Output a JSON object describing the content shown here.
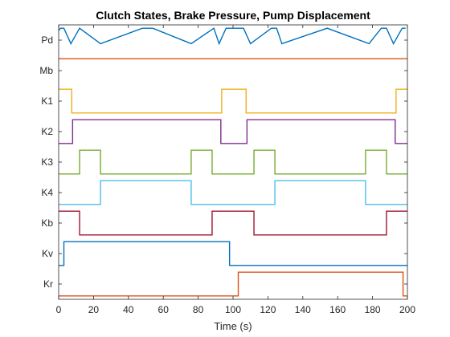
{
  "chart_data": {
    "type": "line",
    "title": "Clutch States, Brake Pressure, Pump Displacement",
    "xlabel": "Time (s)",
    "ylabel": "",
    "xlim": [
      0,
      200
    ],
    "x_ticks": [
      0,
      20,
      40,
      60,
      80,
      100,
      120,
      140,
      160,
      180,
      200
    ],
    "grid": false,
    "legend": "none",
    "series": [
      {
        "name": "Pd",
        "color": "#0072BD",
        "points": [
          [
            0,
            0.9
          ],
          [
            1,
            1.0
          ],
          [
            3,
            1.0
          ],
          [
            7,
            0.35
          ],
          [
            12,
            1.0
          ],
          [
            24,
            0.35
          ],
          [
            48,
            1.0
          ],
          [
            54,
            1.0
          ],
          [
            76,
            0.35
          ],
          [
            89,
            1.0
          ],
          [
            92,
            0.35
          ],
          [
            96,
            1.0
          ],
          [
            106,
            1.0
          ],
          [
            110,
            0.35
          ],
          [
            122,
            1.0
          ],
          [
            125,
            1.0
          ],
          [
            128,
            0.35
          ],
          [
            154,
            1.0
          ],
          [
            178,
            0.35
          ],
          [
            185,
            1.0
          ],
          [
            188,
            1.0
          ],
          [
            192,
            0.35
          ],
          [
            197,
            1.0
          ],
          [
            199,
            1.0
          ]
        ]
      },
      {
        "name": "Mb",
        "color": "#D95319",
        "points": [
          [
            0,
            1.0
          ],
          [
            200,
            1.0
          ]
        ]
      },
      {
        "name": "K1",
        "color": "#EDB120",
        "points": [
          [
            0,
            1
          ],
          [
            7.5,
            1
          ],
          [
            7.5,
            0
          ],
          [
            93.5,
            0
          ],
          [
            93.5,
            1
          ],
          [
            107.5,
            1
          ],
          [
            107.5,
            0
          ],
          [
            193.5,
            0
          ],
          [
            193.5,
            1
          ],
          [
            200,
            1
          ]
        ]
      },
      {
        "name": "K2",
        "color": "#7E2F8E",
        "points": [
          [
            0,
            0
          ],
          [
            8,
            0
          ],
          [
            8,
            1
          ],
          [
            93,
            1
          ],
          [
            93,
            0
          ],
          [
            108,
            0
          ],
          [
            108,
            1
          ],
          [
            193,
            1
          ],
          [
            193,
            0
          ],
          [
            200,
            0
          ]
        ]
      },
      {
        "name": "K3",
        "color": "#77AC30",
        "points": [
          [
            0,
            0
          ],
          [
            12,
            0
          ],
          [
            12,
            1
          ],
          [
            24,
            1
          ],
          [
            24,
            0
          ],
          [
            76,
            0
          ],
          [
            76,
            1
          ],
          [
            88,
            1
          ],
          [
            88,
            0
          ],
          [
            112,
            0
          ],
          [
            112,
            1
          ],
          [
            124,
            1
          ],
          [
            124,
            0
          ],
          [
            176,
            0
          ],
          [
            176,
            1
          ],
          [
            188,
            1
          ],
          [
            188,
            0
          ],
          [
            200,
            0
          ]
        ]
      },
      {
        "name": "K4",
        "color": "#4DBEEE",
        "points": [
          [
            0,
            0
          ],
          [
            24,
            0
          ],
          [
            24,
            1
          ],
          [
            76,
            1
          ],
          [
            76,
            0
          ],
          [
            124,
            0
          ],
          [
            124,
            1
          ],
          [
            176,
            1
          ],
          [
            176,
            0
          ],
          [
            200,
            0
          ]
        ]
      },
      {
        "name": "Kb",
        "color": "#A2142F",
        "points": [
          [
            0,
            1
          ],
          [
            12,
            1
          ],
          [
            12,
            0
          ],
          [
            88,
            0
          ],
          [
            88,
            1
          ],
          [
            112,
            1
          ],
          [
            112,
            0
          ],
          [
            188,
            0
          ],
          [
            188,
            1
          ],
          [
            200,
            1
          ]
        ]
      },
      {
        "name": "Kv",
        "color": "#0072BD",
        "points": [
          [
            0,
            0
          ],
          [
            3,
            0
          ],
          [
            3,
            1
          ],
          [
            98,
            1
          ],
          [
            98,
            0
          ],
          [
            200,
            0
          ]
        ]
      },
      {
        "name": "Kr",
        "color": "#D95319",
        "points": [
          [
            0,
            0
          ],
          [
            103,
            0
          ],
          [
            103,
            1
          ],
          [
            197.5,
            1
          ],
          [
            197.5,
            0
          ],
          [
            200,
            0
          ]
        ]
      }
    ]
  }
}
